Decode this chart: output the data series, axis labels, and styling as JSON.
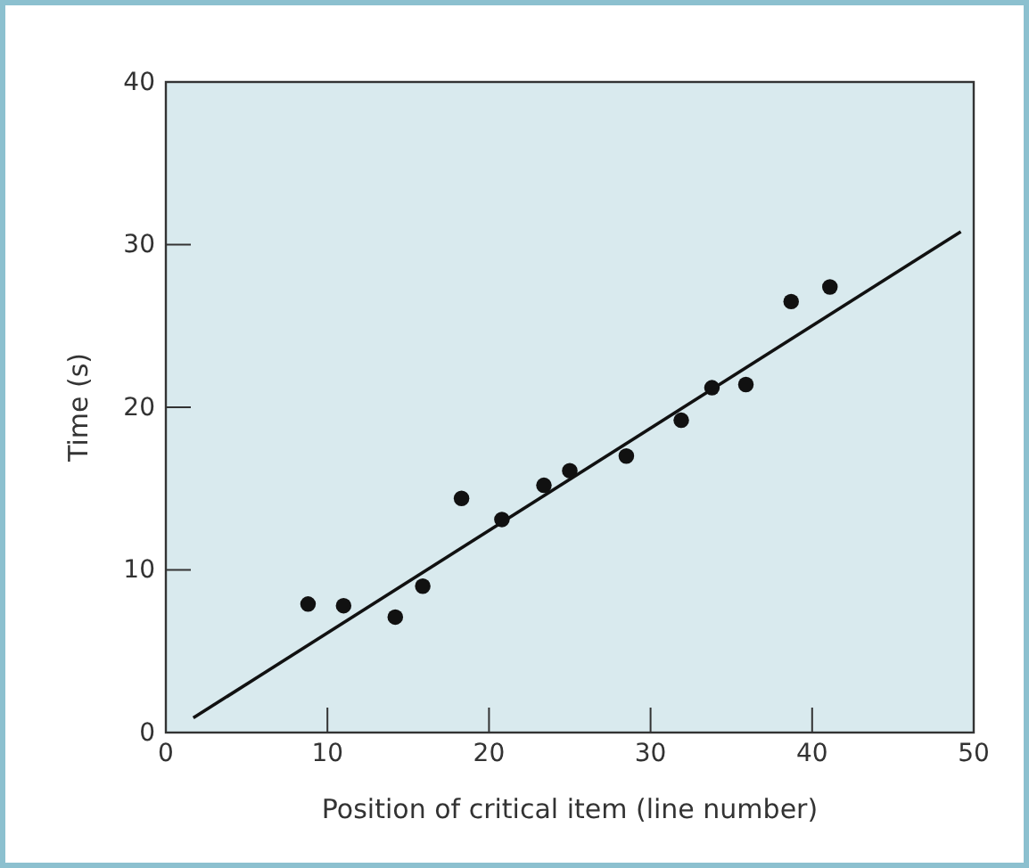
{
  "chart_data": {
    "type": "scatter",
    "xlabel": "Position of critical item (line number)",
    "ylabel": "Time (s)",
    "xlim": [
      0,
      50
    ],
    "xticks": [
      0,
      10,
      20,
      30,
      40,
      50
    ],
    "ylim": [
      0,
      40
    ],
    "yticks": [
      0,
      10,
      20,
      30,
      40
    ],
    "grid": false,
    "series": [
      {
        "marker": "circle",
        "color": "#111111",
        "x": [
          8.8,
          11.0,
          14.2,
          15.9,
          18.3,
          20.8,
          23.4,
          25.0,
          28.5,
          31.9,
          33.8,
          35.9,
          38.7,
          41.1
        ],
        "values": [
          7.9,
          7.8,
          7.1,
          9.0,
          14.4,
          13.1,
          15.2,
          16.1,
          17.0,
          19.2,
          21.2,
          21.4,
          26.5,
          27.4
        ]
      },
      {
        "type": "line",
        "color": "#111111",
        "x": [
          1.7,
          49.2
        ],
        "values": [
          0.9,
          30.8
        ]
      }
    ]
  }
}
